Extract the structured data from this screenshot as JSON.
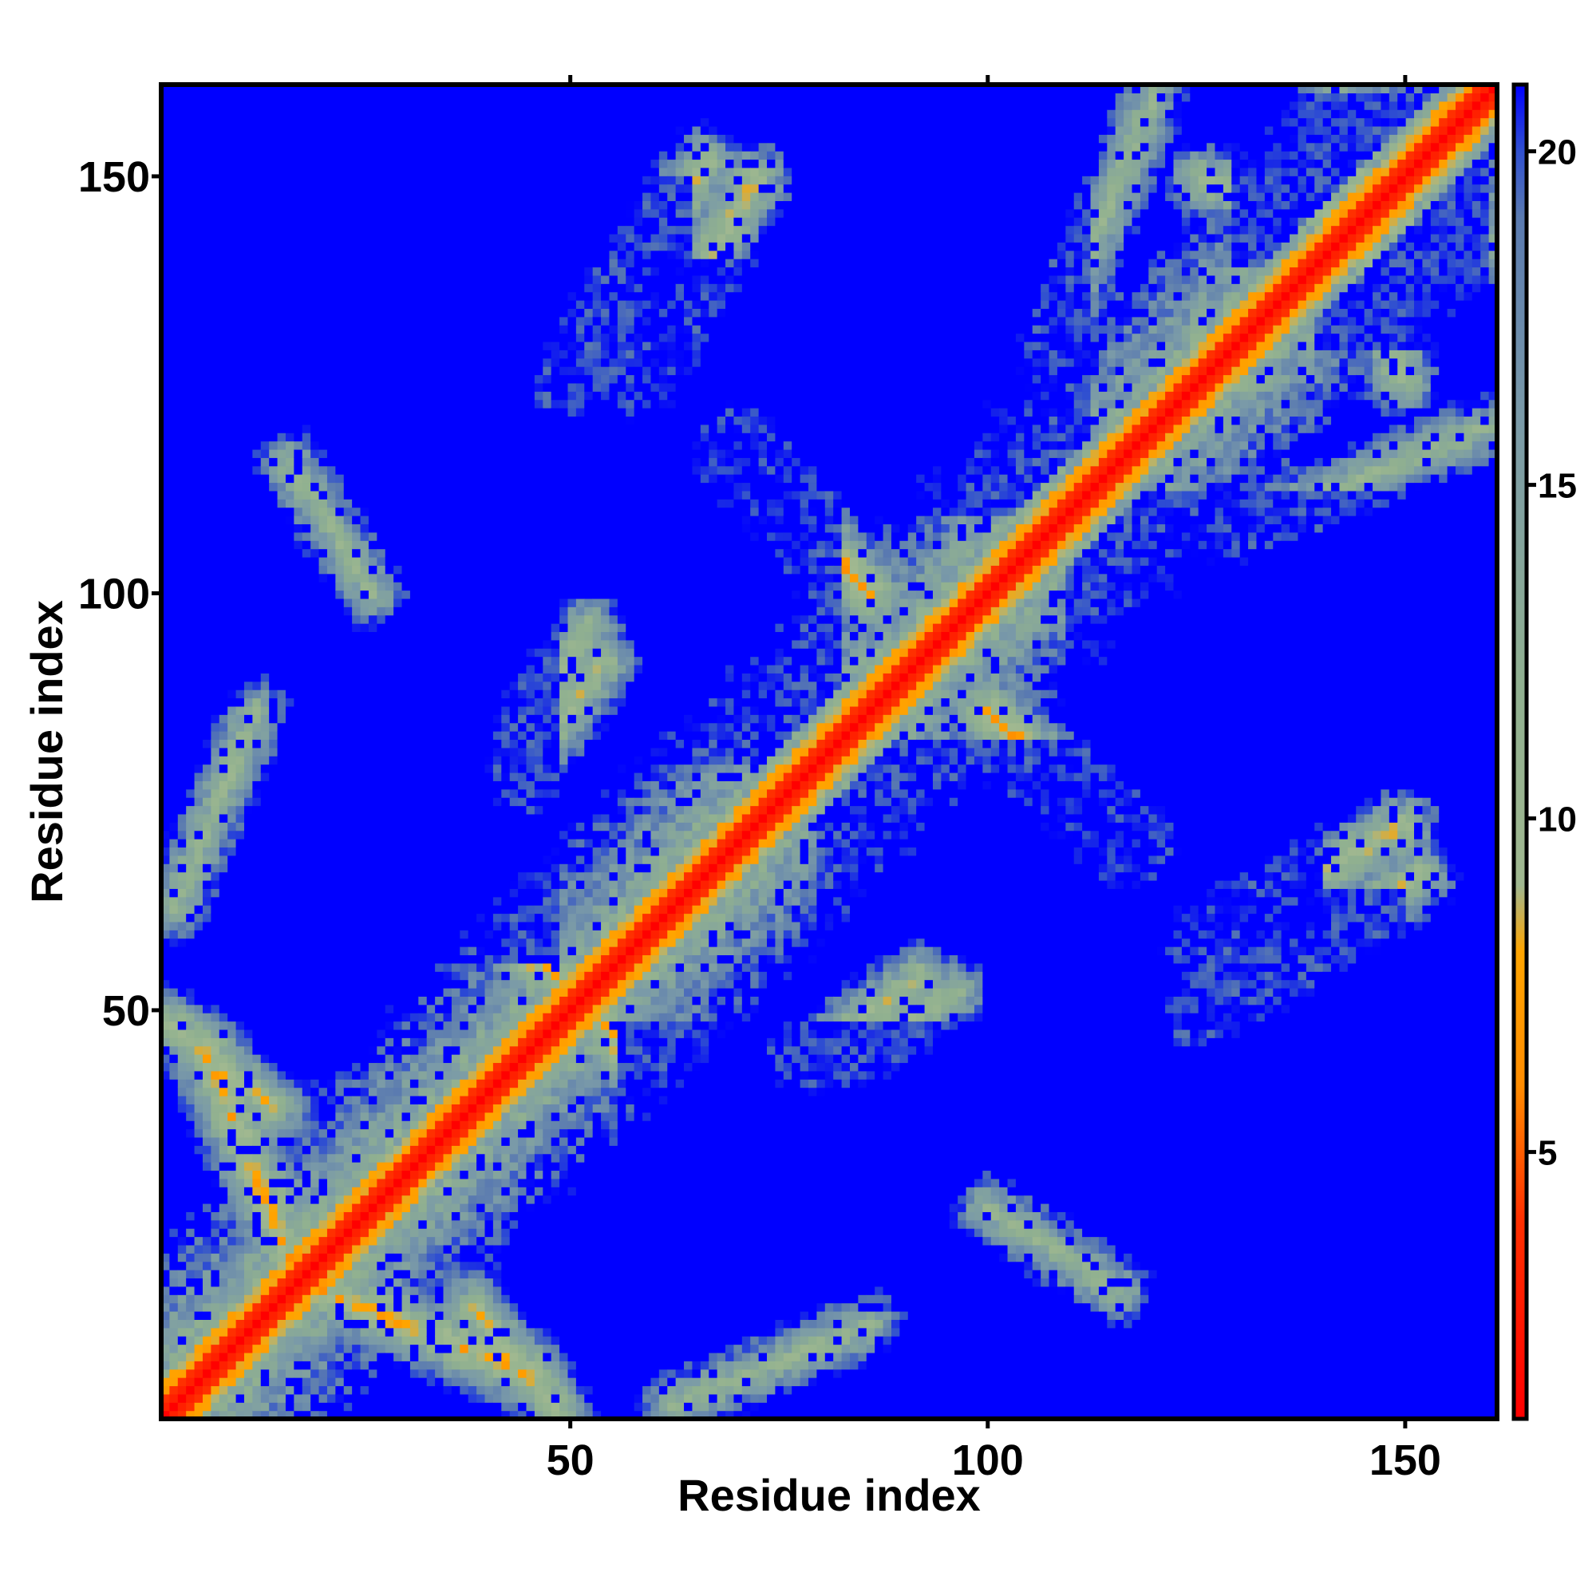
{
  "chart_data": {
    "type": "heatmap",
    "title": "",
    "xlabel": "Residue index",
    "ylabel": "Residue index",
    "n_residues": 161,
    "xlim": [
      1,
      161
    ],
    "ylim": [
      1,
      161
    ],
    "x_ticks": [
      "50",
      "100",
      "150"
    ],
    "x_tick_values": [
      50,
      100,
      150
    ],
    "y_ticks": [
      "50",
      "100",
      "150"
    ],
    "y_tick_values": [
      50,
      100,
      150
    ],
    "colorbar": {
      "ticks": [
        "5",
        "10",
        "15",
        "20"
      ],
      "tick_values": [
        5,
        10,
        15,
        20
      ],
      "range": [
        1,
        21
      ],
      "stops": [
        {
          "value": 1,
          "color": "#ff0000"
        },
        {
          "value": 4,
          "color": "#ff3000"
        },
        {
          "value": 6,
          "color": "#ff8c00"
        },
        {
          "value": 8,
          "color": "#ffa500"
        },
        {
          "value": 9,
          "color": "#a0b890"
        },
        {
          "value": 12,
          "color": "#90b090"
        },
        {
          "value": 16,
          "color": "#7a9aa8"
        },
        {
          "value": 19,
          "color": "#5a7ab0"
        },
        {
          "value": 20,
          "color": "#3050d0"
        },
        {
          "value": 21,
          "color": "#0000ff"
        }
      ]
    },
    "contact_bands": [
      {
        "from": [
          20,
          16
        ],
        "to": [
          45,
          6
        ],
        "strength": 6
      },
      {
        "from": [
          2,
          48
        ],
        "to": [
          14,
          38
        ],
        "strength": 7
      },
      {
        "from": [
          44,
          56
        ],
        "to": [
          52,
          52
        ],
        "strength": 6
      },
      {
        "from": [
          50,
          126
        ],
        "to": [
          66,
          152
        ],
        "strength": 7
      },
      {
        "from": [
          70,
          118
        ],
        "to": [
          86,
          100
        ],
        "strength": 6
      },
      {
        "from": [
          100,
          86
        ],
        "to": [
          116,
          70
        ],
        "strength": 6
      },
      {
        "from": [
          126,
          58
        ],
        "to": [
          150,
          72
        ],
        "strength": 7
      },
      {
        "from": [
          126,
          150
        ],
        "to": [
          160,
          142
        ],
        "strength": 7
      },
      {
        "from": [
          44,
          82
        ],
        "to": [
          52,
          96
        ],
        "strength": 8
      },
      {
        "from": [
          78,
          44
        ],
        "to": [
          92,
          54
        ],
        "strength": 8
      },
      {
        "from": [
          100,
          26
        ],
        "to": [
          116,
          16
        ],
        "strength": 9
      },
      {
        "from": [
          62,
          2
        ],
        "to": [
          86,
          12
        ],
        "strength": 9
      },
      {
        "from": [
          130,
          108
        ],
        "to": [
          160,
          120
        ],
        "strength": 9
      }
    ],
    "blank_regions": [
      {
        "x": [
          22,
          40
        ],
        "y": [
          120,
          160
        ]
      },
      {
        "x": [
          58,
          78
        ],
        "y": [
          104,
          140
        ]
      },
      {
        "x": [
          20,
          42
        ],
        "y": [
          58,
          70
        ]
      },
      {
        "x": [
          110,
          158
        ],
        "y": [
          86,
          112
        ]
      },
      {
        "x": [
          56,
          96
        ],
        "y": [
          20,
          48
        ]
      },
      {
        "x": [
          108,
          150
        ],
        "y": [
          48,
          64
        ]
      },
      {
        "x": [
          120,
          160
        ],
        "y": [
          28,
          50
        ]
      },
      {
        "x": [
          80,
          120
        ],
        "y": [
          58,
          82
        ]
      },
      {
        "x": [
          130,
          160
        ],
        "y": [
          140,
          160
        ]
      }
    ]
  }
}
